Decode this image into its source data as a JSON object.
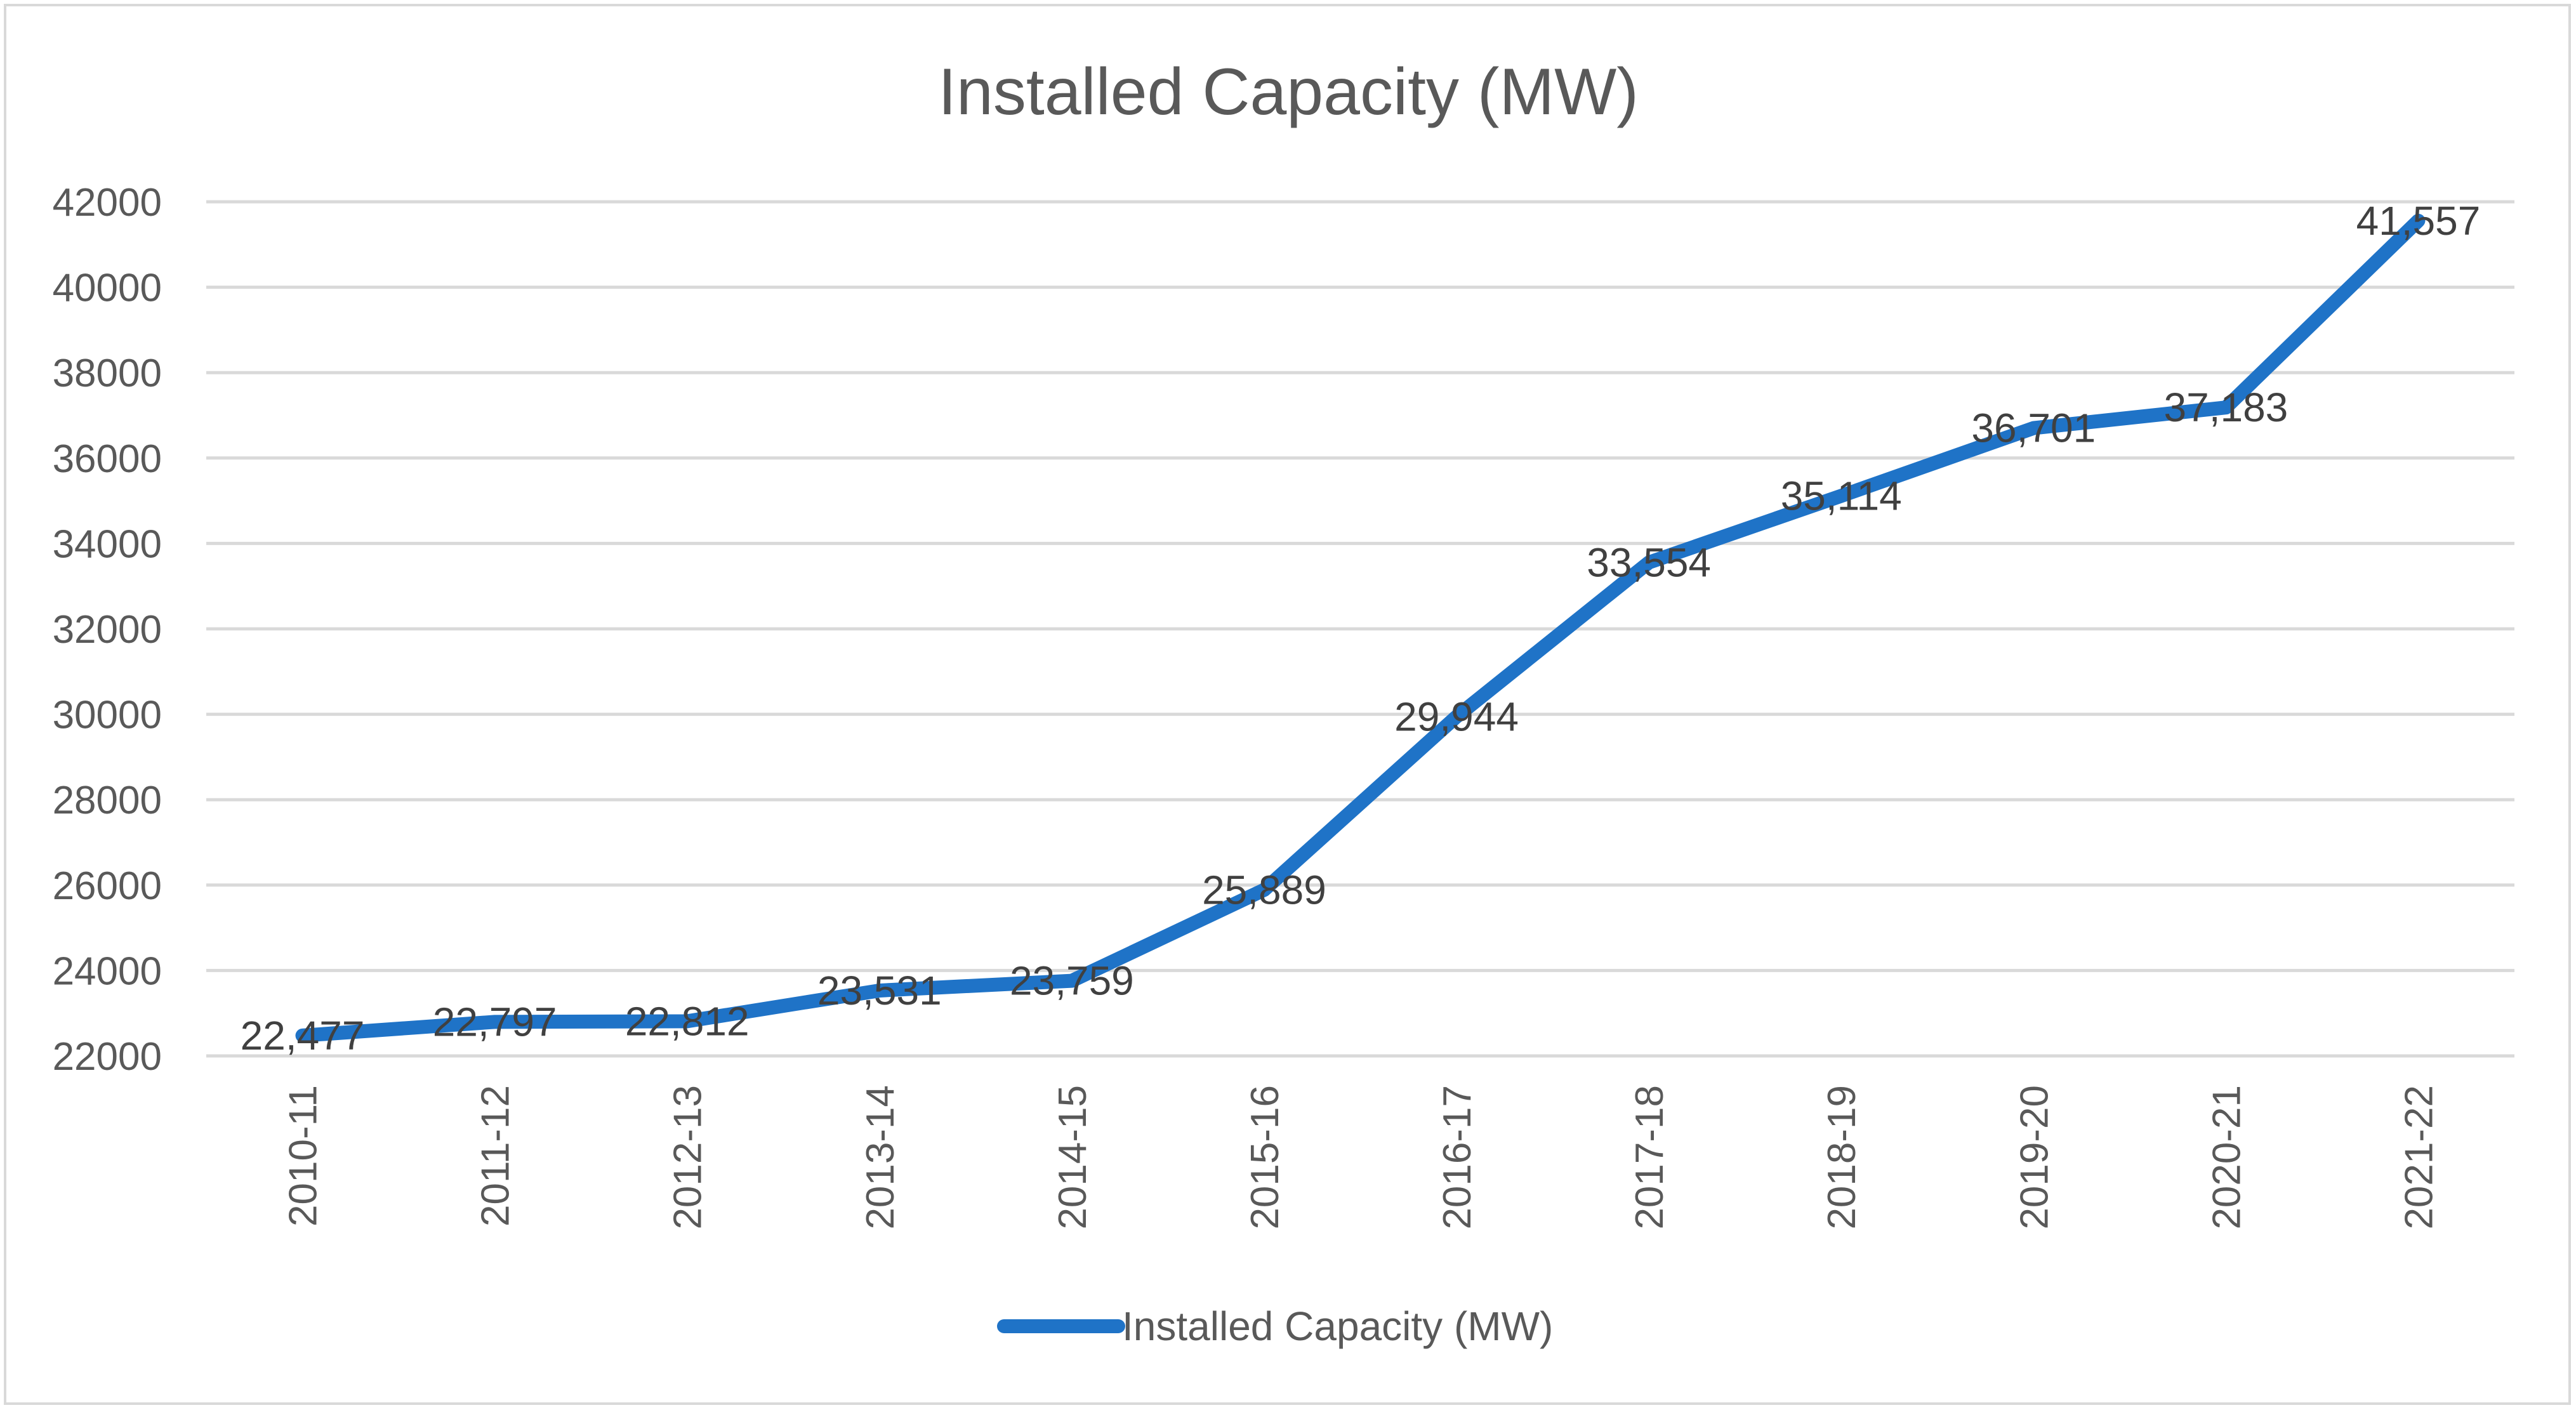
{
  "chart_data": {
    "type": "line",
    "title": "Installed Capacity (MW)",
    "xlabel": "",
    "ylabel": "",
    "categories": [
      "2010-11",
      "2011-12",
      "2012-13",
      "2013-14",
      "2014-15",
      "2015-16",
      "2016-17",
      "2017-18",
      "2018-19",
      "2019-20",
      "2020-21",
      "2021-22"
    ],
    "series": [
      {
        "name": "Installed Capacity (MW)",
        "values": [
          22477,
          22797,
          22812,
          23531,
          23759,
          25889,
          29944,
          33554,
          35114,
          36701,
          37183,
          41557
        ],
        "labels": [
          "22,477",
          "22,797",
          "22,812",
          "23,531",
          "23,759",
          "25,889",
          "29,944",
          "33,554",
          "35,114",
          "36,701",
          "37,183",
          "41,557"
        ],
        "color": "#1f73c7"
      }
    ],
    "ylim": [
      22000,
      42000
    ],
    "yticks": [
      "22000",
      "24000",
      "26000",
      "28000",
      "30000",
      "32000",
      "34000",
      "36000",
      "38000",
      "40000",
      "42000"
    ],
    "ytick_values": [
      22000,
      24000,
      26000,
      28000,
      30000,
      32000,
      34000,
      36000,
      38000,
      40000,
      42000
    ],
    "grid": true,
    "legend": "bottom-center"
  },
  "colors": {
    "grid": "#d9d9d9",
    "text": "#595959",
    "label": "#404040",
    "line": "#1f73c7"
  }
}
